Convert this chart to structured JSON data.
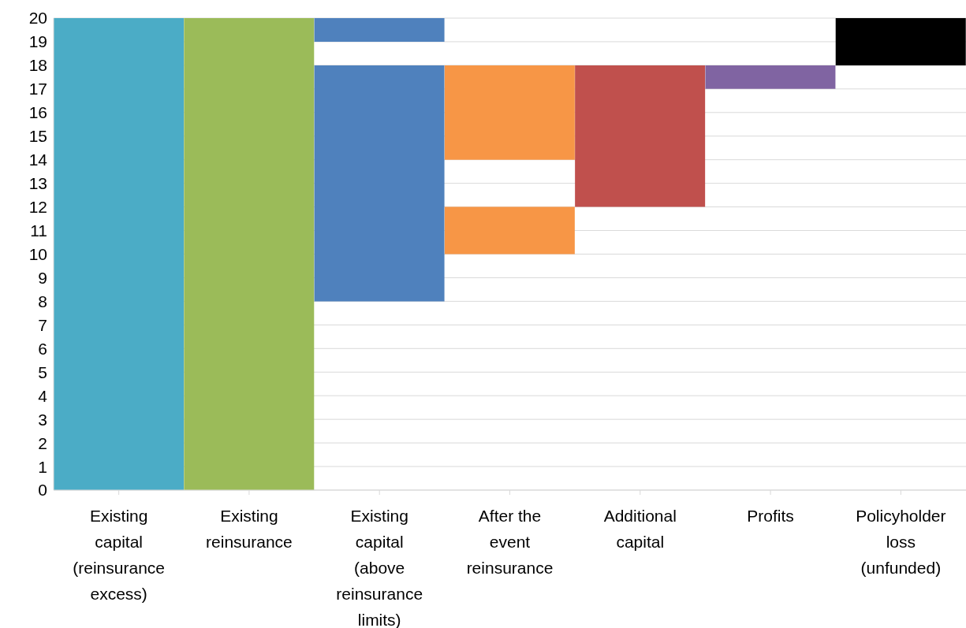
{
  "chart_data": {
    "type": "bar",
    "categories": [
      "Existing capital (reinsurance excess)",
      "Existing reinsurance",
      "Existing capital (above reinsurance limits)",
      "After the event reinsurance",
      "Additional capital",
      "Profits",
      "Policyholder loss (unfunded)"
    ],
    "series": [
      {
        "values": [
          20,
          20,
          10,
          2,
          6,
          1,
          2
        ],
        "base": [
          0,
          0,
          8,
          10,
          12,
          17,
          18
        ],
        "colors": [
          "#4bacc6",
          "#9bbb59",
          "#4f81bd",
          "#f79646",
          "#c0504d",
          "#8064a2",
          "#000000"
        ]
      },
      {
        "values": [
          null,
          null,
          1,
          4,
          null,
          null,
          null
        ],
        "base": [
          null,
          null,
          19,
          14,
          null,
          null,
          null
        ],
        "colors": [
          "#4bacc6",
          "#9bbb59",
          "#4f81bd",
          "#f79646",
          "#c0504d",
          "#8064a2",
          "#000000"
        ]
      }
    ],
    "ylim": [
      0,
      20
    ],
    "yticks": [
      0,
      1,
      2,
      3,
      4,
      5,
      6,
      7,
      8,
      9,
      10,
      11,
      12,
      13,
      14,
      15,
      16,
      17,
      18,
      19,
      20
    ],
    "grid": "y"
  }
}
